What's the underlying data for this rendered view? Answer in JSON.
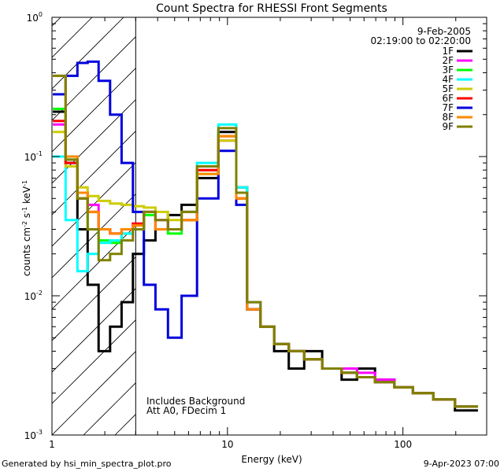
{
  "chart_data": {
    "type": "line",
    "title": "Count Spectra for RHESSI Front Segments",
    "xlabel": "Energy (keV)",
    "ylabel": "counts cm-2 s-1 keV-1",
    "xlog": true,
    "ylog": true,
    "xlim": [
      1,
      300
    ],
    "ylim": [
      0.001,
      1
    ],
    "xticks": [
      {
        "value": 1,
        "label": "1"
      },
      {
        "value": 10,
        "label": "10"
      },
      {
        "value": 100,
        "label": "100"
      }
    ],
    "yticks": [
      {
        "value": 0.001,
        "label": "10",
        "exp": "-3"
      },
      {
        "value": 0.01,
        "label": "10",
        "exp": "-2"
      },
      {
        "value": 0.1,
        "label": "10",
        "exp": "-1"
      },
      {
        "value": 1,
        "label": "10",
        "exp": "0"
      }
    ],
    "date": "9-Feb-2005",
    "time_range": "02:19:00 to 02:20:00",
    "annotations": [
      "Includes Background",
      "Att A0, FDecim 1"
    ],
    "legend_position": "top-right",
    "attenuator_threshold_kev": 3,
    "series": [
      {
        "name": "1F",
        "color": "#000000",
        "values": [
          0.21,
          0.09,
          0.03,
          0.012,
          0.004,
          0.006,
          0.009,
          0.02,
          0.025,
          0.03,
          0.038,
          0.045,
          0.07,
          0.15,
          0.06,
          0.008,
          0.006,
          0.004,
          0.003,
          0.004,
          0.003,
          0.0025,
          0.003,
          0.0025,
          0.0022,
          0.002,
          0.0018,
          0.0015
        ]
      },
      {
        "name": "2F",
        "color": "#ff00ff",
        "values": [
          0.17,
          0.09,
          0.055,
          0.045,
          0.03,
          0.028,
          0.03,
          0.033,
          0.04,
          0.035,
          0.03,
          0.04,
          0.08,
          0.13,
          0.05,
          0.009,
          0.006,
          0.0045,
          0.004,
          0.0035,
          0.003,
          0.003,
          0.0028,
          0.0025,
          0.0022,
          0.002,
          0.0018,
          0.0016
        ]
      },
      {
        "name": "3F",
        "color": "#00ff00",
        "values": [
          0.22,
          0.095,
          0.05,
          0.03,
          0.025,
          0.024,
          0.028,
          0.03,
          0.038,
          0.03,
          0.028,
          0.035,
          0.075,
          0.14,
          0.05,
          0.008,
          0.006,
          0.0045,
          0.004,
          0.0035,
          0.003,
          0.0028,
          0.0026,
          0.0024,
          0.0022,
          0.002,
          0.0018,
          0.0016
        ]
      },
      {
        "name": "4F",
        "color": "#00ffff",
        "values": [
          0.1,
          0.035,
          0.015,
          0.02,
          0.024,
          0.025,
          0.028,
          0.03,
          0.04,
          0.03,
          0.03,
          0.04,
          0.09,
          0.17,
          0.06,
          0.009,
          0.006,
          0.0045,
          0.004,
          0.0035,
          0.003,
          0.0028,
          0.0026,
          0.0024,
          0.0022,
          0.002,
          0.0018,
          0.0016
        ]
      },
      {
        "name": "5F",
        "color": "#cccc00",
        "values": [
          0.15,
          0.085,
          0.06,
          0.052,
          0.048,
          0.046,
          0.045,
          0.044,
          0.043,
          0.04,
          0.035,
          0.04,
          0.08,
          0.13,
          0.05,
          0.008,
          0.006,
          0.0045,
          0.004,
          0.0035,
          0.003,
          0.0028,
          0.0026,
          0.0024,
          0.0022,
          0.002,
          0.0018,
          0.0016
        ]
      },
      {
        "name": "6F",
        "color": "#ff0000",
        "values": [
          0.18,
          0.09,
          0.05,
          0.04,
          0.03,
          0.028,
          0.03,
          0.033,
          0.04,
          0.03,
          0.03,
          0.035,
          0.08,
          0.14,
          0.05,
          0.008,
          0.006,
          0.0045,
          0.004,
          0.0035,
          0.003,
          0.0028,
          0.0026,
          0.0024,
          0.0022,
          0.002,
          0.0018,
          0.0016
        ]
      },
      {
        "name": "7F",
        "color": "#0000dd",
        "values": [
          0.28,
          0.38,
          0.47,
          0.48,
          0.35,
          0.2,
          0.09,
          0.04,
          0.012,
          0.008,
          0.005,
          0.01,
          0.05,
          0.11,
          0.045,
          0.008,
          0.006,
          0.0045,
          0.004,
          0.0035,
          0.003,
          0.0028,
          0.0026,
          0.0024,
          0.0022,
          0.002,
          0.0018,
          0.0016
        ]
      },
      {
        "name": "8F",
        "color": "#ff8800",
        "values": [
          0.38,
          0.1,
          0.055,
          0.04,
          0.03,
          0.028,
          0.03,
          0.032,
          0.04,
          0.03,
          0.03,
          0.035,
          0.075,
          0.14,
          0.05,
          0.008,
          0.006,
          0.0045,
          0.004,
          0.0035,
          0.003,
          0.0028,
          0.0026,
          0.0024,
          0.0022,
          0.002,
          0.0018,
          0.0016
        ]
      },
      {
        "name": "9F",
        "color": "#808000",
        "values": [
          0.38,
          0.095,
          0.05,
          0.03,
          0.018,
          0.02,
          0.025,
          0.03,
          0.04,
          0.035,
          0.03,
          0.04,
          0.085,
          0.16,
          0.055,
          0.009,
          0.006,
          0.0045,
          0.004,
          0.0035,
          0.003,
          0.0028,
          0.0026,
          0.0024,
          0.0022,
          0.002,
          0.0018,
          0.0016
        ]
      }
    ],
    "x": [
      1.1,
      1.3,
      1.5,
      1.7,
      2.0,
      2.3,
      2.7,
      3.1,
      3.6,
      4.2,
      5.0,
      6.0,
      7.5,
      10.5,
      12.0,
      14,
      17,
      20,
      25,
      30,
      40,
      50,
      60,
      80,
      100,
      130,
      170,
      230
    ]
  },
  "footer": {
    "left": "Generated by hsi_min_spectra_plot.pro",
    "right": "9-Apr-2023 07:00"
  }
}
